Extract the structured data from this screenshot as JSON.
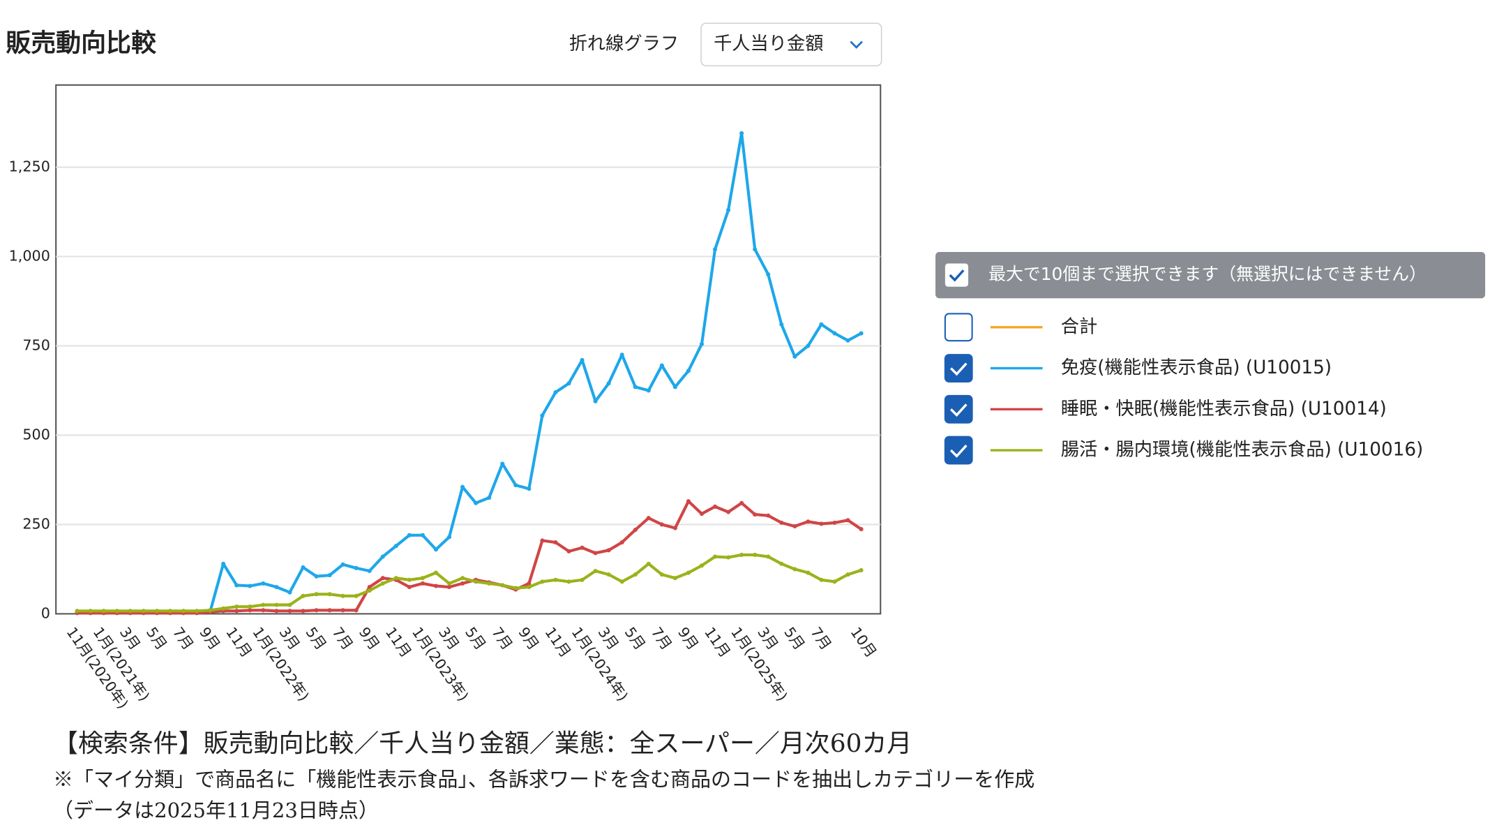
{
  "header": {
    "title": "販売動向比較",
    "chart_type_label": "折れ線グラフ",
    "metric_select": "千人当り金額"
  },
  "legend": {
    "note": "最大で10個まで選択できます（無選択にはできません）"
  },
  "chart_data": {
    "type": "line",
    "categories": [
      "11月(2020年)",
      null,
      "1月(2021年)",
      null,
      "3月",
      null,
      "5月",
      null,
      "7月",
      null,
      "9月",
      null,
      "11月",
      null,
      "1月(2022年)",
      null,
      "3月",
      null,
      "5月",
      null,
      "7月",
      null,
      "9月",
      null,
      "11月",
      null,
      "1月(2023年)",
      null,
      "3月",
      null,
      "5月",
      null,
      "7月",
      null,
      "9月",
      null,
      "11月",
      null,
      "1月(2024年)",
      null,
      "3月",
      null,
      "5月",
      null,
      "7月",
      null,
      "9月",
      null,
      "11月",
      null,
      "1月(2025年)",
      null,
      "3月",
      null,
      "5月",
      null,
      "7月",
      null,
      null,
      "10月"
    ],
    "ylim": [
      0,
      1480
    ],
    "yticks": [
      0,
      250,
      500,
      750,
      {
        "value": 1000,
        "label": "1,000"
      },
      {
        "value": 1250,
        "label": "1,250"
      }
    ],
    "grid": true,
    "series": [
      {
        "name": "合計",
        "color": "#f5a623",
        "visible": false
      },
      {
        "name": "免疫(機能性表示食品) (U10015)",
        "color": "#1ea7ea",
        "visible": true,
        "values": [
          5,
          5,
          5,
          5,
          5,
          5,
          5,
          5,
          5,
          5,
          5,
          140,
          80,
          78,
          85,
          75,
          60,
          130,
          105,
          108,
          138,
          128,
          120,
          160,
          190,
          220,
          220,
          180,
          215,
          355,
          310,
          325,
          420,
          360,
          350,
          555,
          620,
          645,
          710,
          595,
          645,
          725,
          635,
          625,
          695,
          635,
          680,
          755,
          1020,
          1130,
          1345,
          1020,
          950,
          810,
          720,
          750,
          810,
          785,
          765,
          785
        ]
      },
      {
        "name": "睡眠・快眠(機能性表示食品) (U10014)",
        "color": "#d04545",
        "visible": true,
        "values": [
          2,
          2,
          2,
          2,
          2,
          2,
          2,
          2,
          2,
          2,
          5,
          8,
          8,
          10,
          10,
          8,
          8,
          8,
          10,
          10,
          10,
          10,
          75,
          100,
          95,
          75,
          85,
          78,
          75,
          85,
          95,
          88,
          80,
          68,
          85,
          205,
          200,
          175,
          185,
          170,
          178,
          200,
          235,
          268,
          250,
          240,
          315,
          280,
          300,
          285,
          310,
          278,
          275,
          255,
          245,
          258,
          252,
          255,
          262,
          237
        ]
      },
      {
        "name": "腸活・腸内環境(機能性表示食品) (U10016)",
        "color": "#9bb21a",
        "visible": true,
        "values": [
          8,
          8,
          8,
          8,
          8,
          8,
          8,
          8,
          8,
          8,
          10,
          15,
          20,
          20,
          25,
          25,
          25,
          50,
          55,
          55,
          50,
          50,
          65,
          85,
          100,
          95,
          100,
          115,
          85,
          100,
          90,
          85,
          80,
          72,
          75,
          90,
          95,
          90,
          95,
          120,
          110,
          90,
          110,
          140,
          110,
          100,
          115,
          135,
          160,
          158,
          165,
          165,
          160,
          140,
          125,
          115,
          95,
          90,
          110,
          122
        ]
      }
    ]
  },
  "footer": {
    "condition": "【検索条件】販売動向比較／千人当り金額／業態：全スーパー／月次60カ月",
    "note": "※「マイ分類」で商品名に「機能性表示食品」、各訴求ワードを含む商品のコードを抽出しカテゴリーを作成",
    "date": "（データは2025年11月23日時点）"
  }
}
